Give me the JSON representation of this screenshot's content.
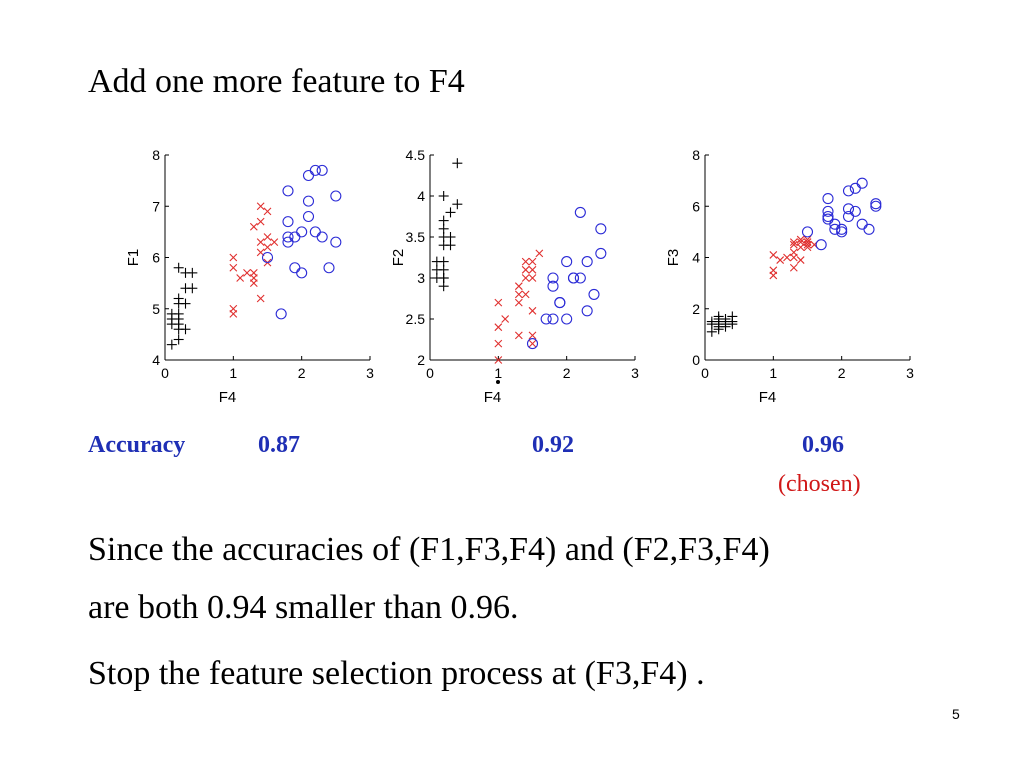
{
  "slide": {
    "title": "Add one more feature to F4",
    "accuracy_label": "Accuracy",
    "accuracies": [
      "0.87",
      "0.92",
      "0.96"
    ],
    "chosen_note": "(chosen)",
    "conclusion_line1": "Since the accuracies of (F1,F3,F4) and  (F2,F3,F4)",
    "conclusion_line2": "are both 0.94 smaller than 0.96.",
    "conclusion_line3": "Stop the feature selection process at (F3,F4) .",
    "page_number": "5"
  },
  "colors": {
    "plus_class": "#000000",
    "x_class": "#e0302f",
    "circle_class": "#2b2bd6",
    "accuracy_text": "#1f2fb5",
    "chosen_text": "#d01717"
  },
  "chart_data": [
    {
      "type": "scatter",
      "xlabel": "F4",
      "ylabel": "F1",
      "xlim": [
        0,
        3
      ],
      "ylim": [
        4,
        8
      ],
      "xticks": [
        "0",
        "1",
        "2",
        "3"
      ],
      "yticks": [
        "4",
        "5",
        "6",
        "7",
        "8"
      ],
      "series": [
        {
          "marker": "plus",
          "color": "#000000",
          "points": [
            [
              0.2,
              5.8
            ],
            [
              0.3,
              5.7
            ],
            [
              0.4,
              5.7
            ],
            [
              0.3,
              5.4
            ],
            [
              0.4,
              5.4
            ],
            [
              0.2,
              5.2
            ],
            [
              0.2,
              5.1
            ],
            [
              0.3,
              5.1
            ],
            [
              0.1,
              4.9
            ],
            [
              0.2,
              4.9
            ],
            [
              0.1,
              4.8
            ],
            [
              0.2,
              4.8
            ],
            [
              0.1,
              4.7
            ],
            [
              0.2,
              4.7
            ],
            [
              0.2,
              4.6
            ],
            [
              0.3,
              4.6
            ],
            [
              0.2,
              4.4
            ],
            [
              0.1,
              4.3
            ]
          ]
        },
        {
          "marker": "x",
          "color": "#e0302f",
          "points": [
            [
              1.4,
              7.0
            ],
            [
              1.5,
              6.9
            ],
            [
              1.4,
              6.7
            ],
            [
              1.3,
              6.6
            ],
            [
              1.5,
              6.4
            ],
            [
              1.4,
              6.3
            ],
            [
              1.6,
              6.3
            ],
            [
              1.5,
              6.2
            ],
            [
              1.4,
              6.1
            ],
            [
              1.0,
              6.0
            ],
            [
              1.3,
              5.7
            ],
            [
              1.5,
              5.9
            ],
            [
              1.0,
              5.8
            ],
            [
              1.1,
              5.6
            ],
            [
              1.3,
              5.6
            ],
            [
              1.3,
              5.5
            ],
            [
              1.2,
              5.7
            ],
            [
              1.4,
              5.2
            ],
            [
              1.0,
              5.0
            ],
            [
              1.0,
              4.9
            ]
          ]
        },
        {
          "marker": "circle",
          "color": "#2b2bd6",
          "points": [
            [
              2.2,
              7.7
            ],
            [
              2.3,
              7.7
            ],
            [
              2.1,
              7.6
            ],
            [
              1.8,
              7.3
            ],
            [
              2.5,
              7.2
            ],
            [
              2.1,
              7.1
            ],
            [
              2.1,
              6.8
            ],
            [
              1.8,
              6.7
            ],
            [
              2.0,
              6.5
            ],
            [
              2.2,
              6.5
            ],
            [
              1.9,
              6.4
            ],
            [
              1.8,
              6.4
            ],
            [
              2.3,
              6.4
            ],
            [
              2.5,
              6.3
            ],
            [
              1.8,
              6.3
            ],
            [
              1.5,
              6.0
            ],
            [
              1.9,
              5.8
            ],
            [
              2.0,
              5.7
            ],
            [
              2.4,
              5.8
            ],
            [
              1.7,
              4.9
            ]
          ]
        }
      ]
    },
    {
      "type": "scatter",
      "xlabel": "F4",
      "ylabel": "F2",
      "xlim": [
        0,
        3
      ],
      "ylim": [
        2,
        4.5
      ],
      "xticks": [
        "0",
        "1",
        "2",
        "3"
      ],
      "yticks": [
        "2",
        "2.5",
        "3",
        "3.5",
        "4",
        "4.5"
      ],
      "series": [
        {
          "marker": "plus",
          "color": "#000000",
          "points": [
            [
              0.4,
              4.4
            ],
            [
              0.2,
              4.0
            ],
            [
              0.4,
              3.9
            ],
            [
              0.3,
              3.8
            ],
            [
              0.2,
              3.7
            ],
            [
              0.2,
              3.6
            ],
            [
              0.3,
              3.5
            ],
            [
              0.2,
              3.5
            ],
            [
              0.3,
              3.4
            ],
            [
              0.2,
              3.4
            ],
            [
              0.1,
              3.2
            ],
            [
              0.2,
              3.1
            ],
            [
              0.1,
              3.1
            ],
            [
              0.2,
              3.0
            ],
            [
              0.2,
              3.0
            ],
            [
              0.2,
              2.9
            ],
            [
              0.2,
              3.2
            ],
            [
              0.1,
              3.0
            ]
          ]
        },
        {
          "marker": "x",
          "color": "#e0302f",
          "points": [
            [
              1.6,
              3.3
            ],
            [
              1.5,
              3.2
            ],
            [
              1.4,
              3.2
            ],
            [
              1.5,
              3.1
            ],
            [
              1.4,
              3.1
            ],
            [
              1.4,
              3.0
            ],
            [
              1.5,
              3.0
            ],
            [
              1.3,
              2.9
            ],
            [
              1.3,
              2.8
            ],
            [
              1.4,
              2.8
            ],
            [
              1.3,
              2.7
            ],
            [
              1.5,
              2.6
            ],
            [
              1.0,
              2.7
            ],
            [
              1.1,
              2.5
            ],
            [
              1.5,
              2.3
            ],
            [
              1.0,
              2.4
            ],
            [
              1.3,
              2.3
            ],
            [
              1.0,
              2.2
            ],
            [
              1.0,
              2.0
            ],
            [
              1.5,
              2.2
            ]
          ]
        },
        {
          "marker": "circle",
          "color": "#2b2bd6",
          "points": [
            [
              2.2,
              3.8
            ],
            [
              2.5,
              3.6
            ],
            [
              2.5,
              3.3
            ],
            [
              2.3,
              3.2
            ],
            [
              2.0,
              3.2
            ],
            [
              2.2,
              3.0
            ],
            [
              2.1,
              3.0
            ],
            [
              1.8,
              3.0
            ],
            [
              1.8,
              2.9
            ],
            [
              2.4,
              2.8
            ],
            [
              1.9,
              2.7
            ],
            [
              1.9,
              2.7
            ],
            [
              2.3,
              2.6
            ],
            [
              1.8,
              2.5
            ],
            [
              1.7,
              2.5
            ],
            [
              2.0,
              2.5
            ],
            [
              2.1,
              3.0
            ],
            [
              1.5,
              2.2
            ]
          ]
        }
      ]
    },
    {
      "type": "scatter",
      "xlabel": "F4",
      "ylabel": "F3",
      "xlim": [
        0,
        3
      ],
      "ylim": [
        0,
        8
      ],
      "xticks": [
        "0",
        "1",
        "2",
        "3"
      ],
      "yticks": [
        "0",
        "2",
        "4",
        "6",
        "8"
      ],
      "series": [
        {
          "marker": "plus",
          "color": "#000000",
          "points": [
            [
              0.2,
              1.7
            ],
            [
              0.4,
              1.7
            ],
            [
              0.3,
              1.6
            ],
            [
              0.2,
              1.5
            ],
            [
              0.3,
              1.5
            ],
            [
              0.1,
              1.5
            ],
            [
              0.4,
              1.4
            ],
            [
              0.2,
              1.4
            ],
            [
              0.3,
              1.3
            ],
            [
              0.2,
              1.3
            ],
            [
              0.1,
              1.4
            ],
            [
              0.2,
              1.2
            ],
            [
              0.1,
              1.1
            ],
            [
              0.4,
              1.5
            ],
            [
              0.3,
              1.4
            ],
            [
              0.2,
              1.6
            ]
          ]
        },
        {
          "marker": "x",
          "color": "#e0302f",
          "points": [
            [
              1.5,
              4.7
            ],
            [
              1.4,
              4.7
            ],
            [
              1.5,
              4.6
            ],
            [
              1.3,
              4.6
            ],
            [
              1.4,
              4.6
            ],
            [
              1.5,
              4.5
            ],
            [
              1.6,
              4.5
            ],
            [
              1.3,
              4.5
            ],
            [
              1.4,
              4.4
            ],
            [
              1.5,
              4.4
            ],
            [
              1.3,
              4.2
            ],
            [
              1.0,
              4.1
            ],
            [
              1.3,
              4.0
            ],
            [
              1.1,
              3.9
            ],
            [
              1.4,
              3.9
            ],
            [
              1.0,
              3.5
            ],
            [
              1.3,
              3.6
            ],
            [
              1.0,
              3.3
            ],
            [
              1.5,
              4.6
            ],
            [
              1.2,
              4.0
            ]
          ]
        },
        {
          "marker": "circle",
          "color": "#2b2bd6",
          "points": [
            [
              2.3,
              6.9
            ],
            [
              2.2,
              6.7
            ],
            [
              2.1,
              6.6
            ],
            [
              1.8,
              6.3
            ],
            [
              2.5,
              6.1
            ],
            [
              2.5,
              6.0
            ],
            [
              2.1,
              5.9
            ],
            [
              2.2,
              5.8
            ],
            [
              1.8,
              5.8
            ],
            [
              2.1,
              5.6
            ],
            [
              1.8,
              5.6
            ],
            [
              1.8,
              5.5
            ],
            [
              2.3,
              5.3
            ],
            [
              1.9,
              5.3
            ],
            [
              2.4,
              5.1
            ],
            [
              1.9,
              5.1
            ],
            [
              2.0,
              5.0
            ],
            [
              2.0,
              5.1
            ],
            [
              1.5,
              5.0
            ],
            [
              1.7,
              4.5
            ]
          ]
        }
      ]
    }
  ]
}
